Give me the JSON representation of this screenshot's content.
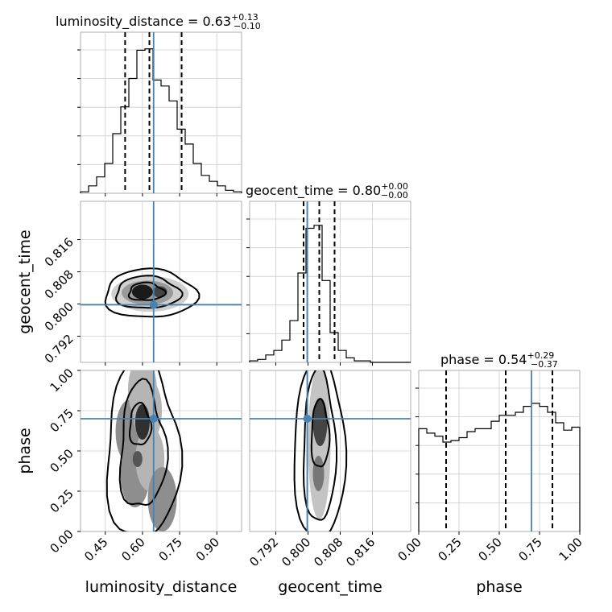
{
  "chart_data": {
    "type": "corner",
    "parameters": [
      {
        "name": "luminosity_distance",
        "range": [
          0.35,
          1.0
        ],
        "ticks": [
          0.45,
          0.6,
          0.75,
          0.9
        ],
        "tick_labels": [
          "0.45",
          "0.60",
          "0.75",
          "0.90"
        ],
        "truth": 0.645,
        "quantiles": [
          0.53,
          0.628,
          0.758
        ],
        "title_lead": "luminosity_distance = 0.63",
        "title_plus": "+0.13",
        "title_minus": "−0.10",
        "hist": [
          0.01,
          0.05,
          0.11,
          0.2,
          0.4,
          0.58,
          0.77,
          0.96,
          0.97,
          0.76,
          0.72,
          0.62,
          0.43,
          0.33,
          0.2,
          0.12,
          0.08,
          0.05,
          0.02,
          0.01
        ]
      },
      {
        "name": "geocent_time",
        "range": [
          0.7855,
          0.8255
        ],
        "ticks": [
          0.792,
          0.8,
          0.808,
          0.816
        ],
        "tick_labels": [
          "0.792",
          "0.800",
          "0.808",
          "0.816"
        ],
        "truth": 0.7998,
        "quantiles": [
          0.7989,
          0.8028,
          0.8066
        ],
        "title_lead": "geocent_time = 0.80",
        "title_plus": "+0.00",
        "title_minus": "−0.00",
        "hist": [
          0.01,
          0.02,
          0.05,
          0.08,
          0.15,
          0.28,
          0.6,
          0.9,
          0.92,
          0.55,
          0.2,
          0.08,
          0.03,
          0.01,
          0.01,
          0.0,
          0.0,
          0.0,
          0.0,
          0.0
        ]
      },
      {
        "name": "phase",
        "range": [
          0.0,
          1.0
        ],
        "ticks": [
          0.0,
          0.25,
          0.5,
          0.75,
          1.0
        ],
        "tick_labels": [
          "0.00",
          "0.25",
          "0.50",
          "0.75",
          "1.00"
        ],
        "truth": 0.7,
        "quantiles": [
          0.17,
          0.54,
          0.83
        ],
        "title_lead": "phase = 0.54",
        "title_plus": "+0.29",
        "title_minus": "−0.37",
        "hist": [
          0.69,
          0.66,
          0.64,
          0.6,
          0.61,
          0.63,
          0.67,
          0.69,
          0.69,
          0.74,
          0.78,
          0.78,
          0.8,
          0.84,
          0.86,
          0.84,
          0.8,
          0.73,
          0.68,
          0.7
        ]
      }
    ],
    "grid": true,
    "colors": {
      "truth": "#4682b4",
      "hist": "#000000",
      "scatter": "#bbbbbb",
      "grid": "#cccccc"
    }
  }
}
